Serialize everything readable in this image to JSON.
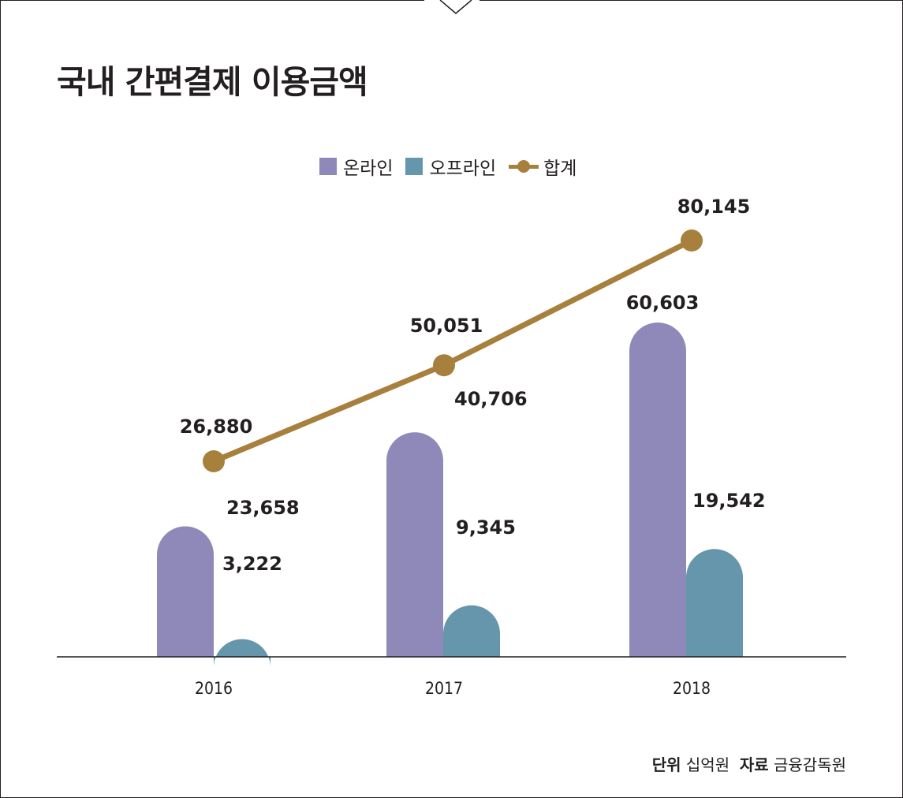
{
  "title": "국내 간편결제 이용금액",
  "footer": {
    "unit_label": "단위",
    "unit_value": "십억원",
    "source_label": "자료",
    "source_value": "금융감독원"
  },
  "colors": {
    "online": "#8f89b9",
    "offline": "#6596ab",
    "total": "#a8803d",
    "axis": "#231f20"
  },
  "chart_data": {
    "type": "bar",
    "categories": [
      "2016",
      "2017",
      "2018"
    ],
    "series": [
      {
        "name": "온라인",
        "kind": "bar",
        "values": [
          23658,
          40706,
          60603
        ],
        "labels": [
          "23,658",
          "40,706",
          "60,603"
        ]
      },
      {
        "name": "오프라인",
        "kind": "bar",
        "values": [
          3222,
          9345,
          19542
        ],
        "labels": [
          "3,222",
          "9,345",
          "19,542"
        ]
      },
      {
        "name": "합계",
        "kind": "line",
        "values": [
          26880,
          50051,
          80145
        ],
        "labels": [
          "26,880",
          "50,051",
          "80,145"
        ]
      }
    ],
    "legend_position": "top-center",
    "grid": false
  }
}
